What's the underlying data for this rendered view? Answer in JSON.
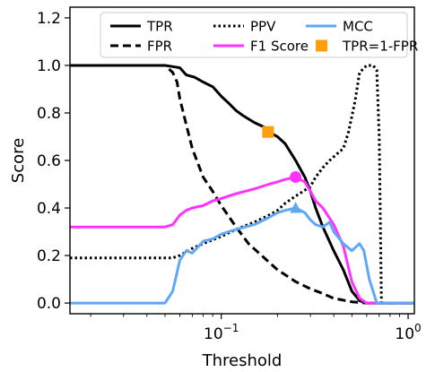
{
  "chart_data": {
    "type": "line",
    "xlabel": "Threshold",
    "ylabel": "Score",
    "xscale": "log",
    "xlim": [
      0.0155,
      1.08
    ],
    "ylim": [
      -0.045,
      1.245
    ],
    "x_ticks": [
      {
        "value": 0.1,
        "base": "10",
        "exp": "−1"
      },
      {
        "value": 1.0,
        "base": "10",
        "exp": "0"
      }
    ],
    "y_ticks": [
      {
        "value": 0.0,
        "label": "0.0"
      },
      {
        "value": 0.2,
        "label": "0.2"
      },
      {
        "value": 0.4,
        "label": "0.4"
      },
      {
        "value": 0.6,
        "label": "0.6"
      },
      {
        "value": 0.8,
        "label": "0.8"
      },
      {
        "value": 1.0,
        "label": "1.0"
      },
      {
        "value": 1.2,
        "label": "1.2"
      }
    ],
    "grid": false,
    "legend_position": "top, inside plot, 3 columns",
    "series": [
      {
        "name": "TPR",
        "color": "#000000",
        "style": "solid",
        "points": [
          [
            0.0155,
            1.0
          ],
          [
            0.03,
            1.0
          ],
          [
            0.05,
            1.0
          ],
          [
            0.055,
            0.995
          ],
          [
            0.06,
            0.99
          ],
          [
            0.065,
            0.96
          ],
          [
            0.072,
            0.95
          ],
          [
            0.08,
            0.93
          ],
          [
            0.09,
            0.91
          ],
          [
            0.1,
            0.87
          ],
          [
            0.11,
            0.84
          ],
          [
            0.12,
            0.81
          ],
          [
            0.13,
            0.79
          ],
          [
            0.15,
            0.76
          ],
          [
            0.17,
            0.74
          ],
          [
            0.18,
            0.72
          ],
          [
            0.2,
            0.7
          ],
          [
            0.22,
            0.67
          ],
          [
            0.25,
            0.6
          ],
          [
            0.28,
            0.53
          ],
          [
            0.3,
            0.47
          ],
          [
            0.32,
            0.4
          ],
          [
            0.35,
            0.32
          ],
          [
            0.4,
            0.22
          ],
          [
            0.45,
            0.14
          ],
          [
            0.5,
            0.05
          ],
          [
            0.55,
            0.01
          ],
          [
            0.6,
            0.0
          ],
          [
            1.08,
            0.0
          ]
        ]
      },
      {
        "name": "FPR",
        "color": "#000000",
        "style": "dashed",
        "points": [
          [
            0.0155,
            1.0
          ],
          [
            0.05,
            1.0
          ],
          [
            0.055,
            0.97
          ],
          [
            0.058,
            0.93
          ],
          [
            0.06,
            0.86
          ],
          [
            0.065,
            0.75
          ],
          [
            0.07,
            0.65
          ],
          [
            0.08,
            0.53
          ],
          [
            0.09,
            0.47
          ],
          [
            0.1,
            0.41
          ],
          [
            0.12,
            0.32
          ],
          [
            0.14,
            0.25
          ],
          [
            0.17,
            0.19
          ],
          [
            0.2,
            0.14
          ],
          [
            0.25,
            0.09
          ],
          [
            0.3,
            0.06
          ],
          [
            0.35,
            0.04
          ],
          [
            0.4,
            0.02
          ],
          [
            0.5,
            0.005
          ],
          [
            0.6,
            0.0
          ],
          [
            1.08,
            0.0
          ]
        ]
      },
      {
        "name": "PPV",
        "color": "#000000",
        "style": "dotted",
        "points": [
          [
            0.0155,
            0.19
          ],
          [
            0.05,
            0.19
          ],
          [
            0.055,
            0.19
          ],
          [
            0.06,
            0.2
          ],
          [
            0.07,
            0.23
          ],
          [
            0.08,
            0.25
          ],
          [
            0.1,
            0.28
          ],
          [
            0.12,
            0.31
          ],
          [
            0.15,
            0.34
          ],
          [
            0.18,
            0.37
          ],
          [
            0.2,
            0.39
          ],
          [
            0.22,
            0.42
          ],
          [
            0.25,
            0.45
          ],
          [
            0.3,
            0.49
          ],
          [
            0.32,
            0.53
          ],
          [
            0.35,
            0.57
          ],
          [
            0.38,
            0.6
          ],
          [
            0.42,
            0.63
          ],
          [
            0.45,
            0.65
          ],
          [
            0.48,
            0.72
          ],
          [
            0.52,
            0.85
          ],
          [
            0.55,
            0.97
          ],
          [
            0.6,
            1.0
          ],
          [
            0.65,
            1.0
          ],
          [
            0.68,
            0.98
          ],
          [
            0.7,
            0.7
          ],
          [
            0.72,
            0.0
          ],
          [
            1.08,
            0.0
          ]
        ]
      },
      {
        "name": "F1 Score",
        "color": "#ff33ff",
        "style": "solid",
        "points": [
          [
            0.0155,
            0.32
          ],
          [
            0.05,
            0.32
          ],
          [
            0.055,
            0.33
          ],
          [
            0.06,
            0.37
          ],
          [
            0.065,
            0.39
          ],
          [
            0.07,
            0.4
          ],
          [
            0.08,
            0.41
          ],
          [
            0.09,
            0.43
          ],
          [
            0.1,
            0.44
          ],
          [
            0.12,
            0.46
          ],
          [
            0.15,
            0.48
          ],
          [
            0.18,
            0.5
          ],
          [
            0.2,
            0.51
          ],
          [
            0.22,
            0.52
          ],
          [
            0.25,
            0.53
          ],
          [
            0.28,
            0.51
          ],
          [
            0.3,
            0.47
          ],
          [
            0.32,
            0.43
          ],
          [
            0.35,
            0.4
          ],
          [
            0.4,
            0.33
          ],
          [
            0.45,
            0.24
          ],
          [
            0.5,
            0.09
          ],
          [
            0.55,
            0.02
          ],
          [
            0.6,
            0.0
          ],
          [
            1.08,
            0.0
          ]
        ]
      },
      {
        "name": "MCC",
        "color": "#5fa8f5",
        "style": "solid",
        "points": [
          [
            0.0155,
            0.0
          ],
          [
            0.05,
            0.0
          ],
          [
            0.055,
            0.05
          ],
          [
            0.06,
            0.18
          ],
          [
            0.065,
            0.22
          ],
          [
            0.07,
            0.21
          ],
          [
            0.08,
            0.26
          ],
          [
            0.09,
            0.27
          ],
          [
            0.1,
            0.29
          ],
          [
            0.12,
            0.31
          ],
          [
            0.15,
            0.33
          ],
          [
            0.18,
            0.36
          ],
          [
            0.2,
            0.38
          ],
          [
            0.22,
            0.39
          ],
          [
            0.25,
            0.4
          ],
          [
            0.28,
            0.38
          ],
          [
            0.3,
            0.35
          ],
          [
            0.32,
            0.33
          ],
          [
            0.35,
            0.32
          ],
          [
            0.38,
            0.34
          ],
          [
            0.4,
            0.3
          ],
          [
            0.45,
            0.25
          ],
          [
            0.5,
            0.22
          ],
          [
            0.55,
            0.25
          ],
          [
            0.58,
            0.22
          ],
          [
            0.62,
            0.1
          ],
          [
            0.68,
            0.0
          ],
          [
            1.08,
            0.0
          ]
        ]
      }
    ],
    "markers": [
      {
        "name": "TPR=1-FPR",
        "shape": "square",
        "color": "#ff9f0e",
        "x": 0.178,
        "y": 0.72,
        "in_legend": true
      },
      {
        "shape": "circle",
        "color": "#ff33ff",
        "x": 0.25,
        "y": 0.53,
        "in_legend": false
      },
      {
        "shape": "triangle",
        "color": "#5fa8f5",
        "x": 0.25,
        "y": 0.4,
        "in_legend": false
      }
    ],
    "legend": [
      {
        "label": "TPR",
        "color": "#000000",
        "style": "solid"
      },
      {
        "label": "PPV",
        "color": "#000000",
        "style": "dotted"
      },
      {
        "label": "MCC",
        "color": "#5fa8f5",
        "style": "solid"
      },
      {
        "label": "FPR",
        "color": "#000000",
        "style": "dashed"
      },
      {
        "label": "F1 Score",
        "color": "#ff33ff",
        "style": "solid"
      },
      {
        "label": "TPR=1-FPR",
        "color": "#ff9f0e",
        "style": "marker-square"
      }
    ]
  }
}
